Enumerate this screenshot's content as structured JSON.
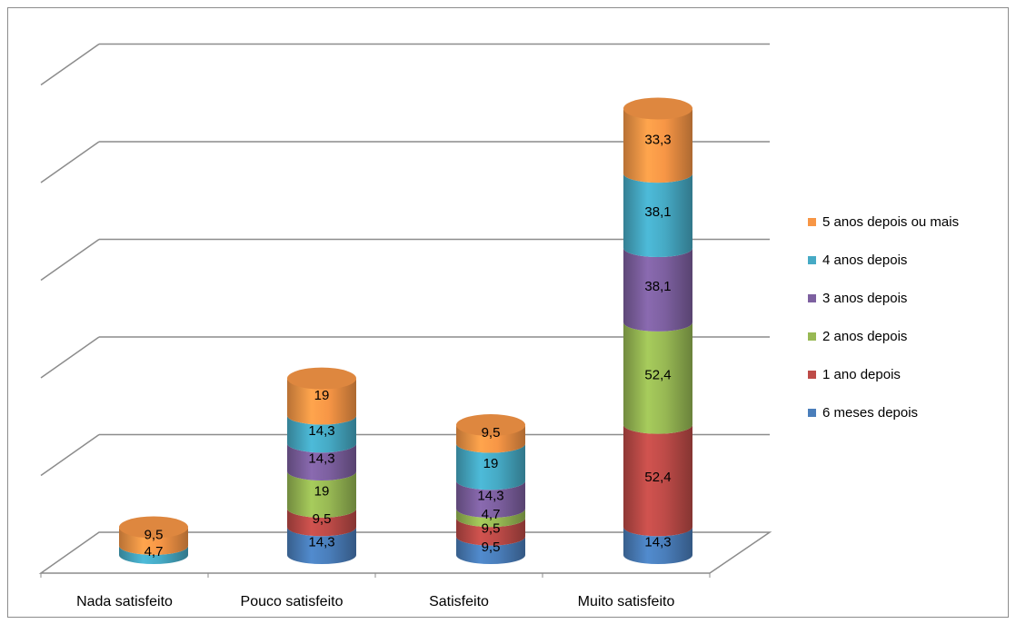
{
  "chart_data": {
    "type": "bar",
    "subtype": "stacked-3d-cylinder",
    "title": "",
    "xlabel": "",
    "ylabel": "",
    "categories": [
      "Nada satisfeito",
      "Pouco satisfeito",
      "Satisfeito",
      "Muito satisfeito"
    ],
    "series": [
      {
        "name": "6 meses depois",
        "color": "#4a7ebb",
        "values": [
          0,
          14.3,
          9.5,
          14.3
        ]
      },
      {
        "name": "1 ano depois",
        "color": "#be4b48",
        "values": [
          0,
          9.5,
          9.5,
          52.4
        ]
      },
      {
        "name": "2 anos depois",
        "color": "#98b954",
        "values": [
          0,
          19,
          4.7,
          52.4
        ]
      },
      {
        "name": "3 anos depois",
        "color": "#7d60a0",
        "values": [
          0,
          14.3,
          14.3,
          38.1
        ]
      },
      {
        "name": "4 anos depois",
        "color": "#46aac5",
        "values": [
          4.7,
          14.3,
          19,
          38.1
        ]
      },
      {
        "name": "5 anos depois ou mais",
        "color": "#f79646",
        "values": [
          9.5,
          19,
          9.5,
          33.3
        ]
      }
    ],
    "ylim": [
      0,
      250
    ],
    "grid": true,
    "legend_position": "right"
  }
}
